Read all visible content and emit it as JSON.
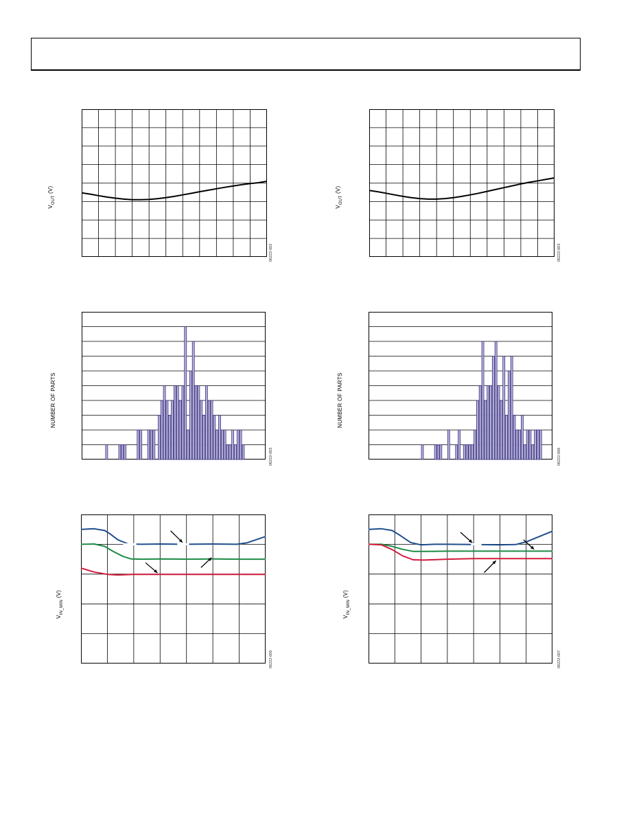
{
  "colors": {
    "line": "#000000",
    "grid": "#000000",
    "bar": "#b5b0d8",
    "bar_edge": "#3c3580",
    "blue": "#1f4e8c",
    "green": "#1d8a46",
    "red": "#d11b3c"
  },
  "labels": {
    "vout_main": "V",
    "vout_sub": "OUT",
    "vout_unit": " (V)",
    "parts": "NUMBER OF PARTS",
    "vin_main": "V",
    "vin_sub": "IN_MIN",
    "vin_unit": " (V)"
  },
  "figure_ids": [
    "06222-002",
    "06222-003",
    "06222-003",
    "06222-006",
    "06222-006",
    "06222-007"
  ],
  "chart_data": [
    {
      "type": "line",
      "series": [
        {
          "values": [
            [
              0,
              3.47
            ],
            [
              0.5,
              3.4
            ],
            [
              1,
              3.32
            ],
            [
              1.5,
              3.24
            ],
            [
              2,
              3.18
            ],
            [
              2.5,
              3.13
            ],
            [
              3,
              3.1
            ],
            [
              3.5,
              3.1
            ],
            [
              4,
              3.11
            ],
            [
              4.5,
              3.15
            ],
            [
              5,
              3.21
            ],
            [
              5.5,
              3.28
            ],
            [
              6,
              3.36
            ],
            [
              6.5,
              3.44
            ],
            [
              7,
              3.53
            ],
            [
              7.5,
              3.61
            ],
            [
              8,
              3.69
            ],
            [
              8.5,
              3.77
            ],
            [
              9,
              3.84
            ],
            [
              9.5,
              3.91
            ],
            [
              10,
              3.97
            ],
            [
              10.5,
              4.02
            ],
            [
              11,
              4.1
            ]
          ]
        }
      ],
      "xlim": [
        0,
        11
      ],
      "ylim": [
        0,
        8
      ],
      "grid": true
    },
    {
      "type": "line",
      "series": [
        {
          "values": [
            [
              0,
              3.6
            ],
            [
              0.5,
              3.53
            ],
            [
              1,
              3.45
            ],
            [
              1.5,
              3.36
            ],
            [
              2,
              3.28
            ],
            [
              2.5,
              3.21
            ],
            [
              3,
              3.16
            ],
            [
              3.5,
              3.13
            ],
            [
              4,
              3.13
            ],
            [
              4.5,
              3.16
            ],
            [
              5,
              3.21
            ],
            [
              5.5,
              3.28
            ],
            [
              6,
              3.36
            ],
            [
              6.5,
              3.45
            ],
            [
              7,
              3.55
            ],
            [
              7.5,
              3.65
            ],
            [
              8,
              3.75
            ],
            [
              8.5,
              3.85
            ],
            [
              9,
              3.95
            ],
            [
              9.5,
              4.04
            ],
            [
              10,
              4.12
            ],
            [
              10.5,
              4.2
            ],
            [
              11,
              4.28
            ]
          ]
        }
      ],
      "xlim": [
        0,
        11
      ],
      "ylim": [
        0,
        8
      ],
      "grid": true
    },
    {
      "type": "bar",
      "values": [
        0,
        0,
        0,
        0,
        0,
        0,
        0,
        0,
        0,
        1,
        0,
        0,
        0,
        0,
        1,
        1,
        1,
        0,
        0,
        0,
        0,
        2,
        2,
        0,
        0,
        2,
        2,
        2,
        0,
        3,
        4,
        5,
        4,
        3,
        4,
        5,
        5,
        4,
        5,
        9,
        2,
        6,
        8,
        5,
        5,
        4,
        3,
        5,
        4,
        4,
        3,
        2,
        3,
        2,
        2,
        1,
        1,
        2,
        1,
        2,
        2,
        1,
        0,
        0,
        0,
        0,
        0,
        0,
        0,
        0
      ],
      "ylim": [
        0,
        10
      ],
      "grid": "horizontal"
    },
    {
      "type": "bar",
      "values": [
        0,
        0,
        0,
        0,
        0,
        0,
        0,
        0,
        0,
        0,
        0,
        0,
        0,
        0,
        0,
        0,
        0,
        0,
        0,
        0,
        1,
        0,
        0,
        0,
        0,
        1,
        1,
        1,
        0,
        0,
        2,
        0,
        0,
        1,
        2,
        0,
        1,
        1,
        1,
        1,
        2,
        4,
        5,
        8,
        4,
        5,
        5,
        7,
        8,
        5,
        4,
        7,
        3,
        6,
        7,
        3,
        2,
        2,
        3,
        1,
        2,
        2,
        1,
        2,
        2,
        2,
        0,
        0,
        0,
        0
      ],
      "ylim": [
        0,
        10
      ],
      "grid": "horizontal"
    },
    {
      "type": "line",
      "series": [
        {
          "color": "blue",
          "values": [
            [
              0,
              4.5
            ],
            [
              0.5,
              4.52
            ],
            [
              0.9,
              4.46
            ],
            [
              1.1,
              4.35
            ],
            [
              1.4,
              4.15
            ],
            [
              1.8,
              4.01
            ],
            [
              2.3,
              4.0
            ],
            [
              3,
              4.01
            ],
            [
              4,
              4.0
            ],
            [
              5,
              4.01
            ],
            [
              5.9,
              4.0
            ],
            [
              6.3,
              4.05
            ],
            [
              7,
              4.26
            ]
          ]
        },
        {
          "color": "green",
          "values": [
            [
              0,
              4.0
            ],
            [
              0.5,
              4.01
            ],
            [
              0.9,
              3.93
            ],
            [
              1.2,
              3.77
            ],
            [
              1.6,
              3.59
            ],
            [
              1.9,
              3.51
            ],
            [
              2.3,
              3.5
            ],
            [
              3,
              3.51
            ],
            [
              4,
              3.5
            ],
            [
              5,
              3.51
            ],
            [
              6,
              3.5
            ],
            [
              7,
              3.5
            ]
          ]
        },
        {
          "color": "red",
          "values": [
            [
              0,
              3.2
            ],
            [
              0.5,
              3.07
            ],
            [
              1,
              2.99
            ],
            [
              1.4,
              2.97
            ],
            [
              2,
              2.99
            ],
            [
              3,
              2.99
            ],
            [
              4,
              2.99
            ],
            [
              5,
              2.99
            ],
            [
              6,
              2.99
            ],
            [
              7,
              2.99
            ]
          ]
        }
      ],
      "xlim": [
        0,
        7
      ],
      "ylim": [
        0,
        5
      ],
      "grid": true
    },
    {
      "type": "line",
      "series": [
        {
          "color": "blue",
          "values": [
            [
              0,
              4.5
            ],
            [
              0.5,
              4.52
            ],
            [
              0.9,
              4.46
            ],
            [
              1.2,
              4.3
            ],
            [
              1.6,
              4.06
            ],
            [
              2,
              3.98
            ],
            [
              2.5,
              4.0
            ],
            [
              3,
              4.0
            ],
            [
              4,
              3.99
            ],
            [
              5,
              3.98
            ],
            [
              5.6,
              3.99
            ],
            [
              6,
              4.08
            ],
            [
              7,
              4.44
            ]
          ]
        },
        {
          "color": "green",
          "values": [
            [
              0,
              4.0
            ],
            [
              0.5,
              4.0
            ],
            [
              0.9,
              3.93
            ],
            [
              1.3,
              3.83
            ],
            [
              1.7,
              3.76
            ],
            [
              2.2,
              3.76
            ],
            [
              3,
              3.77
            ],
            [
              4,
              3.77
            ],
            [
              5,
              3.77
            ],
            [
              6,
              3.77
            ],
            [
              7,
              3.77
            ]
          ]
        },
        {
          "color": "red",
          "values": [
            [
              0,
              4.0
            ],
            [
              0.5,
              3.98
            ],
            [
              0.9,
              3.82
            ],
            [
              1.3,
              3.61
            ],
            [
              1.7,
              3.48
            ],
            [
              2.1,
              3.47
            ],
            [
              3,
              3.5
            ],
            [
              4,
              3.52
            ],
            [
              5,
              3.52
            ],
            [
              6,
              3.52
            ],
            [
              7,
              3.52
            ]
          ]
        }
      ],
      "xlim": [
        0,
        7
      ],
      "ylim": [
        0,
        5
      ],
      "grid": true
    }
  ]
}
